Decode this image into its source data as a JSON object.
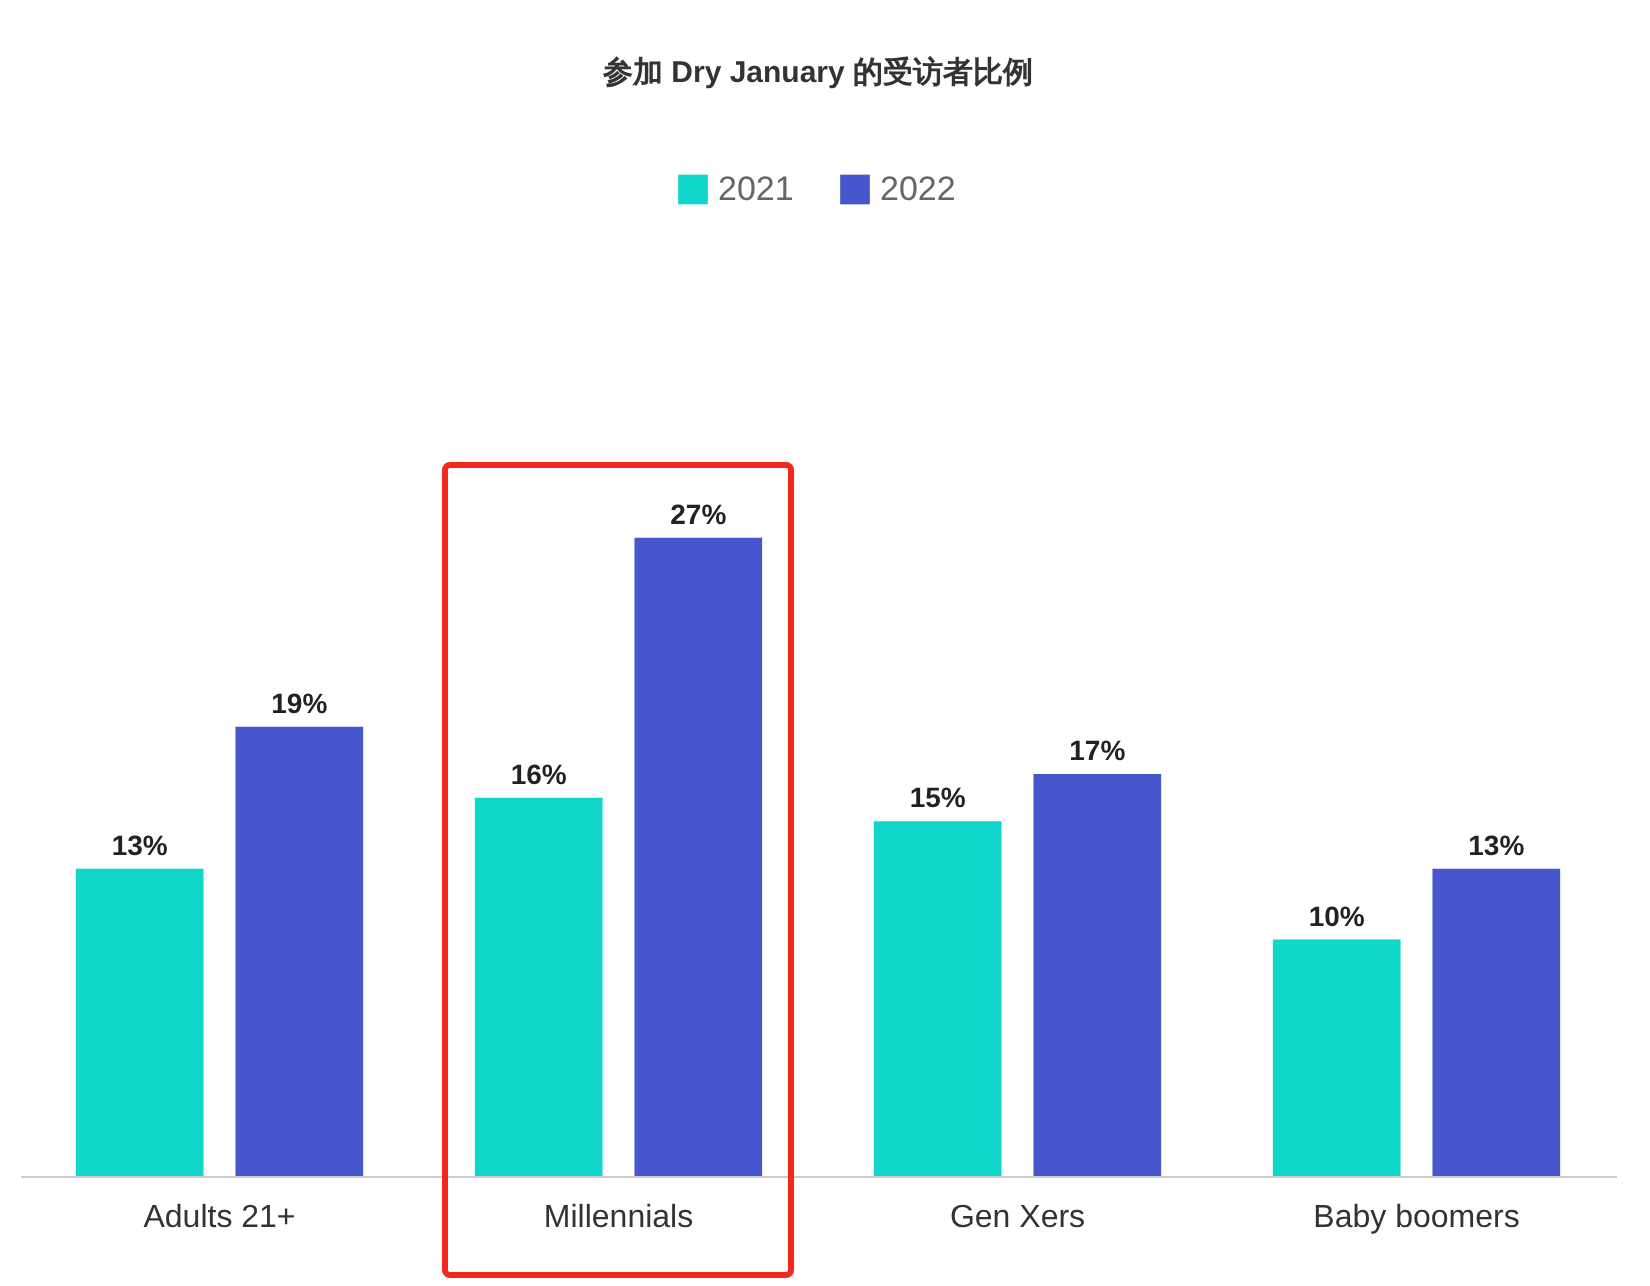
{
  "chart_data": {
    "type": "bar",
    "title": "参加 Dry January 的受访者比例",
    "categories": [
      "Adults 21+",
      "Millennials",
      "Gen Xers",
      "Baby boomers"
    ],
    "series": [
      {
        "name": "2021",
        "color": "#0fd6c9",
        "values": [
          13,
          16,
          15,
          10
        ],
        "value_labels": [
          "13%",
          "16%",
          "15%",
          "10%"
        ]
      },
      {
        "name": "2022",
        "color": "#4656cc",
        "values": [
          19,
          27,
          17,
          13
        ],
        "value_labels": [
          "19%",
          "27%",
          "17%",
          "13%"
        ]
      }
    ],
    "legend": "top",
    "grid": false
  }
}
